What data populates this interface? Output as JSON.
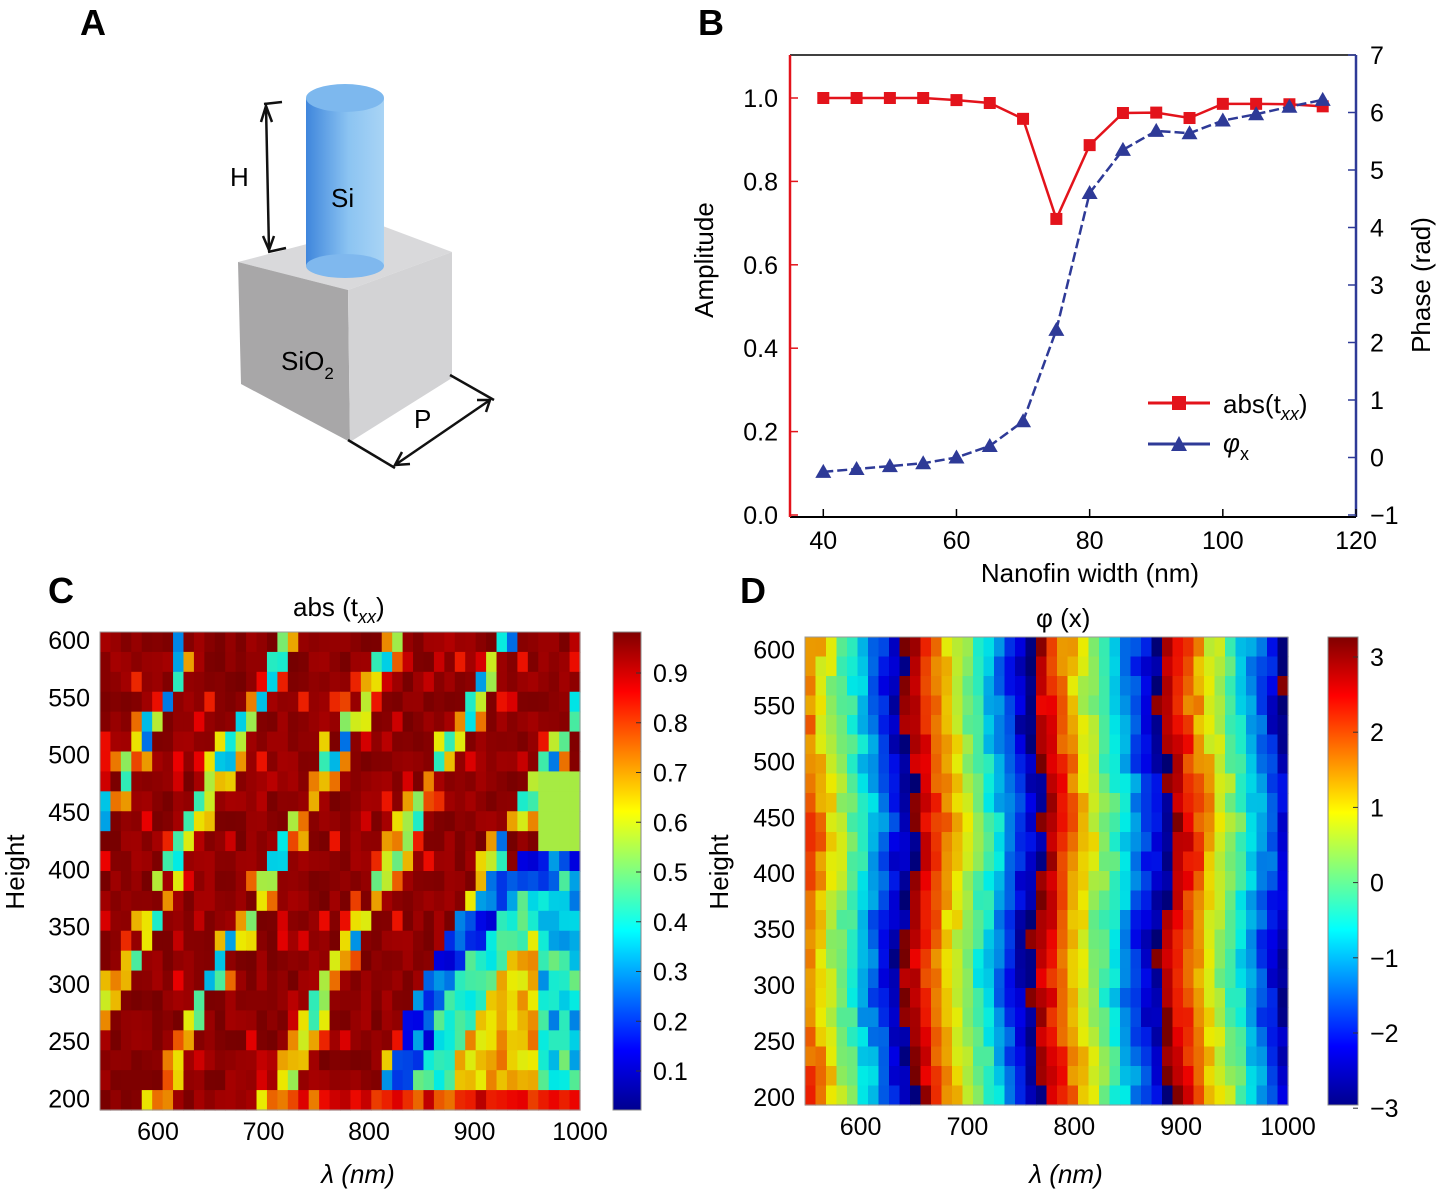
{
  "panels": {
    "a": {
      "label": "A",
      "labels": {
        "height": "H",
        "pillar": "Si",
        "substrate": "SiO",
        "substrate_sub": "2",
        "period": "P"
      },
      "colors": {
        "pillar": "#6fb0ea",
        "substrate": "#cfcfd1"
      }
    },
    "b": {
      "label": "B"
    },
    "c": {
      "label": "C"
    },
    "d": {
      "label": "D"
    }
  },
  "chart_data": [
    {
      "panel": "B",
      "type": "line",
      "xlabel": "Nanofin width (nm)",
      "ylabel": "Amplitude",
      "y2label": "Phase (rad)",
      "xlim": [
        35,
        120
      ],
      "ylim": [
        0,
        1.1
      ],
      "y2lim": [
        -1,
        7
      ],
      "xticks": [
        "40",
        "60",
        "80",
        "100",
        "120"
      ],
      "yticks": [
        "0.0",
        "0.2",
        "0.4",
        "0.6",
        "0.8",
        "1.0"
      ],
      "y2ticks": [
        "−1",
        "0",
        "1",
        "2",
        "3",
        "4",
        "5",
        "6",
        "7"
      ],
      "legend_position": "lower-right",
      "x": [
        40,
        45,
        50,
        55,
        60,
        65,
        70,
        75,
        80,
        85,
        90,
        95,
        100,
        105,
        110,
        115
      ],
      "series": [
        {
          "name": "abs(t",
          "name_sub": "xx",
          "name_suffix": ")",
          "axis": "left",
          "marker": "square",
          "color": "#e3131b",
          "values": [
            1.0,
            1.0,
            1.0,
            1.0,
            0.995,
            0.988,
            0.95,
            0.71,
            0.887,
            0.964,
            0.965,
            0.952,
            0.986,
            0.986,
            0.985,
            0.98
          ]
        },
        {
          "name": "φ",
          "name_sub": "x",
          "name_suffix": "",
          "axis": "right",
          "marker": "triangle",
          "color": "#2e3a97",
          "values": [
            -0.25,
            -0.2,
            -0.15,
            -0.1,
            0.0,
            0.2,
            0.63,
            2.22,
            4.6,
            5.35,
            5.68,
            5.64,
            5.86,
            5.97,
            6.1,
            6.22
          ]
        }
      ]
    },
    {
      "panel": "C",
      "type": "heatmap",
      "title": "abs (t",
      "title_sub": "xx",
      "title_suffix": ")",
      "xlabel": "λ (nm)",
      "ylabel": "Height",
      "xlim": [
        545,
        1000
      ],
      "ylim": [
        190,
        607
      ],
      "xticks": [
        "600",
        "700",
        "800",
        "900",
        "1000"
      ],
      "yticks": [
        "200",
        "250",
        "300",
        "350",
        "400",
        "450",
        "500",
        "550",
        "600"
      ],
      "colormap": "jet",
      "clim": [
        0.02,
        0.98
      ],
      "colorbar_ticks": [
        "0.1",
        "0.2",
        "0.3",
        "0.4",
        "0.5",
        "0.6",
        "0.7",
        "0.8",
        "0.9"
      ]
    },
    {
      "panel": "D",
      "type": "heatmap",
      "title": "φ (x)",
      "xlabel": "λ (nm)",
      "ylabel": "Height",
      "xlim": [
        548,
        1000
      ],
      "ylim": [
        193,
        611
      ],
      "xticks": [
        "600",
        "700",
        "800",
        "900",
        "1000"
      ],
      "yticks": [
        "200",
        "250",
        "300",
        "350",
        "400",
        "450",
        "500",
        "550",
        "600"
      ],
      "colormap": "jet",
      "clim": [
        -3.14,
        3.14
      ],
      "colorbar_ticks": [
        "3",
        "2",
        "1",
        "0",
        "−1",
        "−2",
        "−3"
      ]
    }
  ]
}
